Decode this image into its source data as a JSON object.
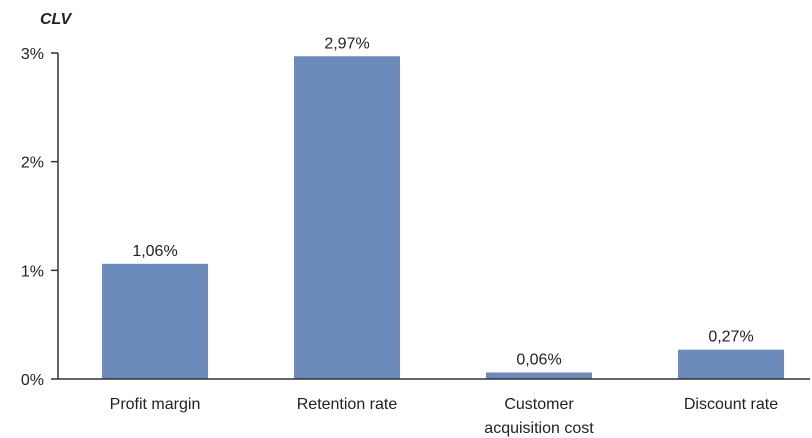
{
  "chart_data": {
    "type": "bar",
    "ylabel": "CLV",
    "categories": [
      [
        "Profit margin"
      ],
      [
        "Retention rate"
      ],
      [
        "Customer",
        "acquisition cost"
      ],
      [
        "Discount rate"
      ]
    ],
    "values": [
      1.06,
      2.97,
      0.06,
      0.27
    ],
    "data_labels": [
      "1,06%",
      "2,97%",
      "0,06%",
      "0,27%"
    ],
    "ylim": [
      0,
      3
    ],
    "yticks": [
      0,
      1,
      2,
      3
    ],
    "ytick_labels": [
      "0%",
      "1%",
      "2%",
      "3%"
    ],
    "grid": false,
    "bar_color": "#6b8cba"
  }
}
